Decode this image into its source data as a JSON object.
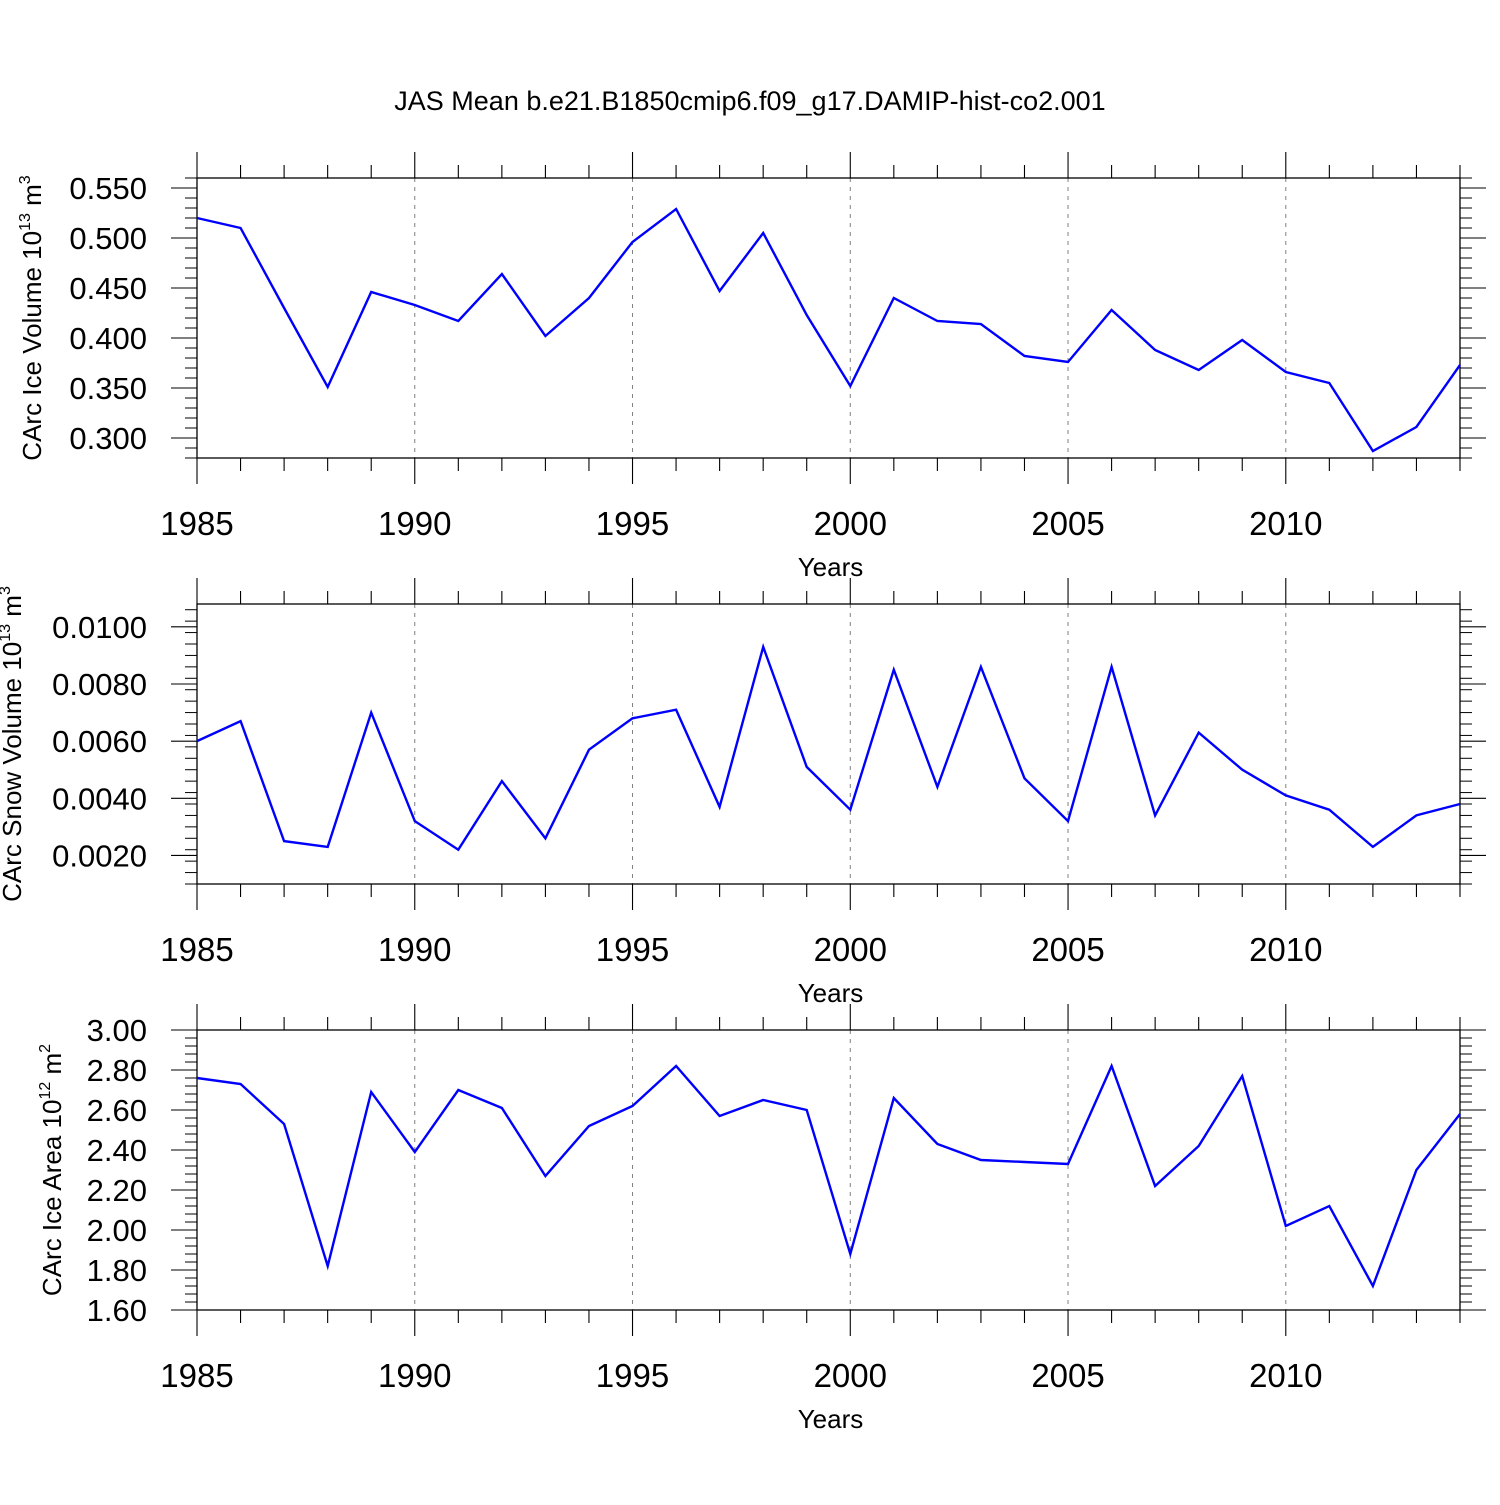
{
  "figure": {
    "title": "JAS Mean b.e21.B1850cmip6.f09_g17.DAMIP-hist-co2.001"
  },
  "colors": {
    "line": "#0000ff",
    "axis": "#000000",
    "grid": "#808080",
    "background": "#ffffff"
  },
  "chart_data": [
    {
      "type": "line",
      "title": "",
      "xlabel": "Years",
      "ylabel_main": "CArc Ice Volume 10",
      "ylabel_exp": "13",
      "ylabel_unit": " m",
      "ylabel_unit_exp": "3",
      "xlim": [
        1985,
        2014
      ],
      "ylim": [
        0.28,
        0.56
      ],
      "xticks": [
        1985,
        1990,
        1995,
        2000,
        2005,
        2010
      ],
      "xtick_labels": [
        "1985",
        "1990",
        "1995",
        "2000",
        "2005",
        "2010"
      ],
      "yticks": [
        0.3,
        0.35,
        0.4,
        0.45,
        0.5,
        0.55
      ],
      "ytick_labels": [
        "0.300",
        "0.350",
        "0.400",
        "0.450",
        "0.500",
        "0.550"
      ],
      "y_minor_step": 0.01,
      "grid": "vertical dashed at major x ticks",
      "x": [
        1985,
        1986,
        1987,
        1988,
        1989,
        1990,
        1991,
        1992,
        1993,
        1994,
        1995,
        1996,
        1997,
        1998,
        1999,
        2000,
        2001,
        2002,
        2003,
        2004,
        2005,
        2006,
        2007,
        2008,
        2009,
        2010,
        2011,
        2012,
        2013,
        2014
      ],
      "series": [
        {
          "values": [
            0.52,
            0.51,
            0.43,
            0.351,
            0.446,
            0.433,
            0.417,
            0.464,
            0.402,
            0.44,
            0.496,
            0.529,
            0.447,
            0.505,
            0.423,
            0.352,
            0.44,
            0.417,
            0.414,
            0.382,
            0.376,
            0.428,
            0.388,
            0.368,
            0.398,
            0.366,
            0.355,
            0.287,
            0.311,
            0.373
          ]
        }
      ]
    },
    {
      "type": "line",
      "title": "",
      "xlabel": "Years",
      "ylabel_main": "CArc Snow Volume 10",
      "ylabel_exp": "13",
      "ylabel_unit": " m",
      "ylabel_unit_exp": "3",
      "xlim": [
        1985,
        2014
      ],
      "ylim": [
        0.001,
        0.0108
      ],
      "xticks": [
        1985,
        1990,
        1995,
        2000,
        2005,
        2010
      ],
      "xtick_labels": [
        "1985",
        "1990",
        "1995",
        "2000",
        "2005",
        "2010"
      ],
      "yticks": [
        0.002,
        0.004,
        0.006,
        0.008,
        0.01
      ],
      "ytick_labels": [
        "0.0020",
        "0.0040",
        "0.0060",
        "0.0080",
        "0.0100"
      ],
      "y_minor_step": 0.0004,
      "grid": "vertical dashed at major x ticks",
      "x": [
        1985,
        1986,
        1987,
        1988,
        1989,
        1990,
        1991,
        1992,
        1993,
        1994,
        1995,
        1996,
        1997,
        1998,
        1999,
        2000,
        2001,
        2002,
        2003,
        2004,
        2005,
        2006,
        2007,
        2008,
        2009,
        2010,
        2011,
        2012,
        2013,
        2014
      ],
      "series": [
        {
          "values": [
            0.006,
            0.0067,
            0.0025,
            0.0023,
            0.007,
            0.0032,
            0.0022,
            0.0046,
            0.0026,
            0.0057,
            0.0068,
            0.0071,
            0.0037,
            0.0093,
            0.0051,
            0.0036,
            0.0085,
            0.0044,
            0.0086,
            0.0047,
            0.0032,
            0.0086,
            0.0034,
            0.0063,
            0.005,
            0.0041,
            0.0036,
            0.0023,
            0.0034,
            0.0038
          ]
        }
      ]
    },
    {
      "type": "line",
      "title": "",
      "xlabel": "Years",
      "ylabel_main": "CArc Ice Area 10",
      "ylabel_exp": "12",
      "ylabel_unit": " m",
      "ylabel_unit_exp": "2",
      "xlim": [
        1985,
        2014
      ],
      "ylim": [
        1.6,
        3.0
      ],
      "xticks": [
        1985,
        1990,
        1995,
        2000,
        2005,
        2010
      ],
      "xtick_labels": [
        "1985",
        "1990",
        "1995",
        "2000",
        "2005",
        "2010"
      ],
      "yticks": [
        1.6,
        1.8,
        2.0,
        2.2,
        2.4,
        2.6,
        2.8,
        3.0
      ],
      "ytick_labels": [
        "1.60",
        "1.80",
        "2.00",
        "2.20",
        "2.40",
        "2.60",
        "2.80",
        "3.00"
      ],
      "y_minor_step": 0.04,
      "grid": "vertical dashed at major x ticks",
      "x": [
        1985,
        1986,
        1987,
        1988,
        1989,
        1990,
        1991,
        1992,
        1993,
        1994,
        1995,
        1996,
        1997,
        1998,
        1999,
        2000,
        2001,
        2002,
        2003,
        2004,
        2005,
        2006,
        2007,
        2008,
        2009,
        2010,
        2011,
        2012,
        2013,
        2014
      ],
      "series": [
        {
          "values": [
            2.76,
            2.73,
            2.53,
            1.82,
            2.69,
            2.39,
            2.7,
            2.61,
            2.27,
            2.52,
            2.62,
            2.82,
            2.57,
            2.65,
            2.6,
            1.88,
            2.66,
            2.43,
            2.35,
            2.34,
            2.33,
            2.82,
            2.22,
            2.42,
            2.77,
            2.02,
            2.12,
            1.72,
            2.3,
            2.58
          ]
        }
      ]
    }
  ]
}
